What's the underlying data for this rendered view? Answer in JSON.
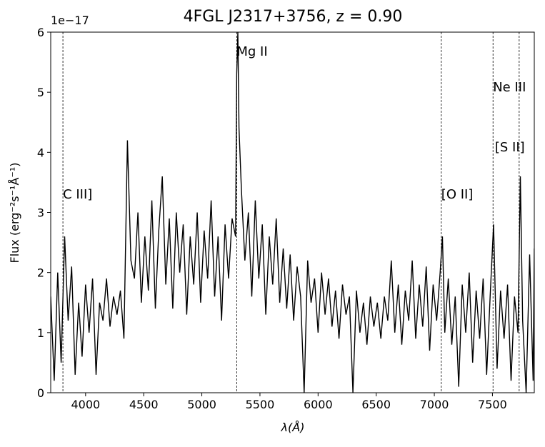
{
  "chart_data": {
    "type": "line",
    "title": "4FGL J2317+3756, z = 0.90",
    "xlabel": "λ(Å)",
    "ylabel": "Flux (erg⁻²s⁻¹Å⁻¹)",
    "y_offset_label": "1e−17",
    "color": "#000000",
    "xlim": [
      3700,
      7860
    ],
    "ylim": [
      0,
      6
    ],
    "xticks": [
      4000,
      4500,
      5000,
      5500,
      6000,
      6500,
      7000,
      7500
    ],
    "yticks": [
      0,
      1,
      2,
      3,
      4,
      5,
      6
    ],
    "x": [
      3700,
      3730,
      3760,
      3790,
      3820,
      3850,
      3880,
      3910,
      3940,
      3970,
      4000,
      4030,
      4060,
      4090,
      4120,
      4150,
      4180,
      4210,
      4240,
      4270,
      4300,
      4330,
      4360,
      4390,
      4420,
      4450,
      4480,
      4510,
      4540,
      4570,
      4600,
      4630,
      4660,
      4690,
      4720,
      4750,
      4780,
      4810,
      4840,
      4870,
      4900,
      4930,
      4960,
      4990,
      5020,
      5050,
      5080,
      5110,
      5140,
      5170,
      5200,
      5230,
      5260,
      5290,
      5300,
      5310,
      5320,
      5340,
      5370,
      5400,
      5430,
      5460,
      5490,
      5520,
      5550,
      5580,
      5610,
      5640,
      5670,
      5700,
      5730,
      5760,
      5790,
      5820,
      5850,
      5880,
      5910,
      5940,
      5970,
      6000,
      6030,
      6060,
      6090,
      6120,
      6150,
      6180,
      6210,
      6240,
      6270,
      6300,
      6330,
      6360,
      6390,
      6420,
      6450,
      6480,
      6510,
      6540,
      6570,
      6600,
      6630,
      6660,
      6690,
      6720,
      6750,
      6780,
      6810,
      6840,
      6870,
      6900,
      6930,
      6960,
      6990,
      7020,
      7050,
      7070,
      7090,
      7120,
      7150,
      7180,
      7210,
      7240,
      7270,
      7300,
      7330,
      7360,
      7390,
      7420,
      7450,
      7480,
      7510,
      7540,
      7570,
      7600,
      7630,
      7660,
      7690,
      7720,
      7740,
      7760,
      7790,
      7820,
      7850,
      7860
    ],
    "values": [
      1.6,
      0.2,
      2.0,
      0.5,
      2.6,
      1.2,
      2.1,
      0.3,
      1.5,
      0.6,
      1.8,
      1.0,
      1.9,
      0.3,
      1.5,
      1.2,
      1.9,
      1.1,
      1.6,
      1.3,
      1.7,
      0.9,
      4.2,
      2.2,
      1.9,
      3.0,
      1.5,
      2.6,
      1.7,
      3.2,
      1.4,
      2.7,
      3.6,
      1.8,
      2.9,
      1.4,
      3.0,
      2.0,
      2.8,
      1.3,
      2.6,
      1.8,
      3.0,
      1.5,
      2.7,
      1.9,
      3.2,
      1.6,
      2.6,
      1.2,
      2.8,
      1.9,
      2.9,
      2.6,
      5.3,
      6.0,
      4.4,
      3.4,
      2.2,
      3.0,
      1.6,
      3.2,
      1.9,
      2.8,
      1.3,
      2.6,
      1.8,
      2.9,
      1.5,
      2.4,
      1.4,
      2.3,
      1.2,
      2.1,
      1.6,
      0.0,
      2.2,
      1.5,
      1.9,
      1.0,
      2.0,
      1.3,
      1.9,
      1.1,
      1.7,
      0.9,
      1.8,
      1.3,
      1.6,
      0.0,
      1.7,
      1.0,
      1.5,
      0.8,
      1.6,
      1.1,
      1.5,
      0.9,
      1.6,
      1.2,
      2.2,
      1.0,
      1.8,
      0.8,
      1.7,
      1.2,
      2.2,
      0.9,
      1.8,
      1.1,
      2.1,
      0.7,
      1.8,
      1.2,
      2.0,
      2.6,
      1.0,
      1.9,
      0.8,
      1.6,
      0.1,
      1.8,
      1.0,
      2.0,
      0.5,
      1.7,
      0.9,
      1.9,
      0.3,
      1.6,
      2.8,
      0.4,
      1.7,
      0.9,
      1.8,
      0.2,
      1.6,
      1.0,
      3.6,
      1.2,
      0.0,
      2.3,
      0.2,
      2.4
    ],
    "lines": [
      {
        "x": 3805,
        "label": "C III]"
      },
      {
        "x": 5300,
        "label": "Mg II"
      },
      {
        "x": 7060,
        "label": "[O II]"
      },
      {
        "x": 7505,
        "label": "Ne III"
      },
      {
        "x": 7730,
        "label": "[S II]"
      }
    ]
  }
}
